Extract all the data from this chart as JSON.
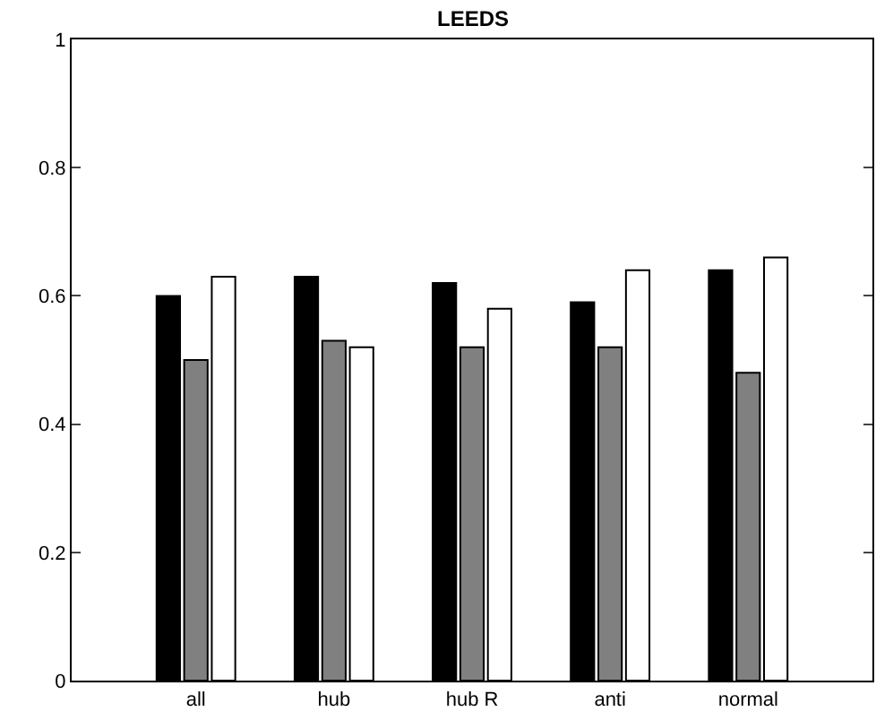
{
  "chart_data": {
    "type": "bar",
    "title": "LEEDS",
    "categories": [
      "all",
      "hub",
      "hub R",
      "anti",
      "normal"
    ],
    "series": [
      {
        "color": "#000000",
        "values": [
          0.6,
          0.63,
          0.62,
          0.59,
          0.64
        ]
      },
      {
        "color": "#808080",
        "values": [
          0.5,
          0.53,
          0.52,
          0.52,
          0.48
        ]
      },
      {
        "color": "#ffffff",
        "values": [
          0.63,
          0.52,
          0.58,
          0.64,
          0.66
        ]
      }
    ],
    "ylim": [
      0,
      1
    ],
    "yticks": [
      0,
      0.2,
      0.4,
      0.6,
      0.8,
      1
    ]
  }
}
